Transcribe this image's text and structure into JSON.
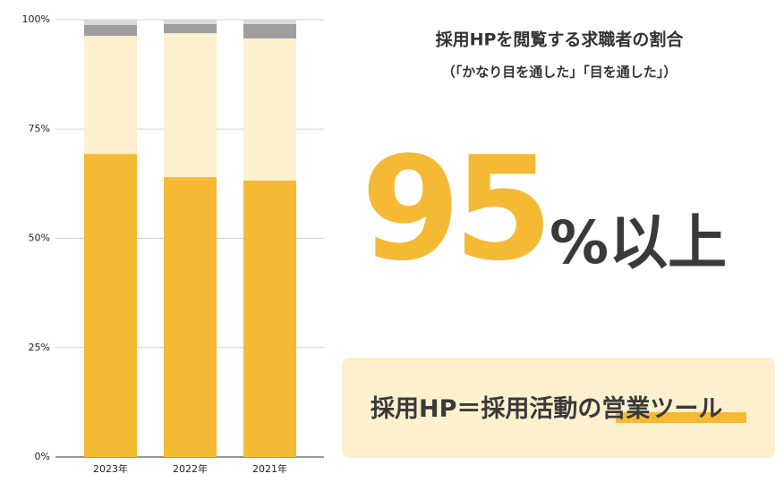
{
  "chart_data": {
    "type": "stacked_bar",
    "categories": [
      "2023年",
      "2022年",
      "2021年"
    ],
    "series": [
      {
        "color": "#f6b934",
        "values": [
          69.3,
          64.0,
          63.2
        ]
      },
      {
        "color": "#fdf0cf",
        "values": [
          27.0,
          32.9,
          32.5
        ]
      },
      {
        "color": "#9e9e9e",
        "values": [
          2.5,
          2.1,
          3.3
        ]
      },
      {
        "color": "#d9d9d9",
        "values": [
          1.2,
          1.0,
          1.0
        ]
      }
    ],
    "ylim": [
      0,
      100
    ],
    "yticks": [
      {
        "value": 0,
        "label": "0%"
      },
      {
        "value": 25,
        "label": "25%"
      },
      {
        "value": 50,
        "label": "50%"
      },
      {
        "value": 75,
        "label": "75%"
      },
      {
        "value": 100,
        "label": "100%"
      }
    ],
    "grid": true,
    "annotations": {
      "title": "採用HPを閲覧する求職者の割合",
      "subtitle": "（「かなり目を通した」「目を通した」）",
      "headline_number": 95,
      "headline_suffix": "%以上",
      "box_text": "採用HP＝採用活動の",
      "box_highlight": "営業ツール"
    }
  }
}
